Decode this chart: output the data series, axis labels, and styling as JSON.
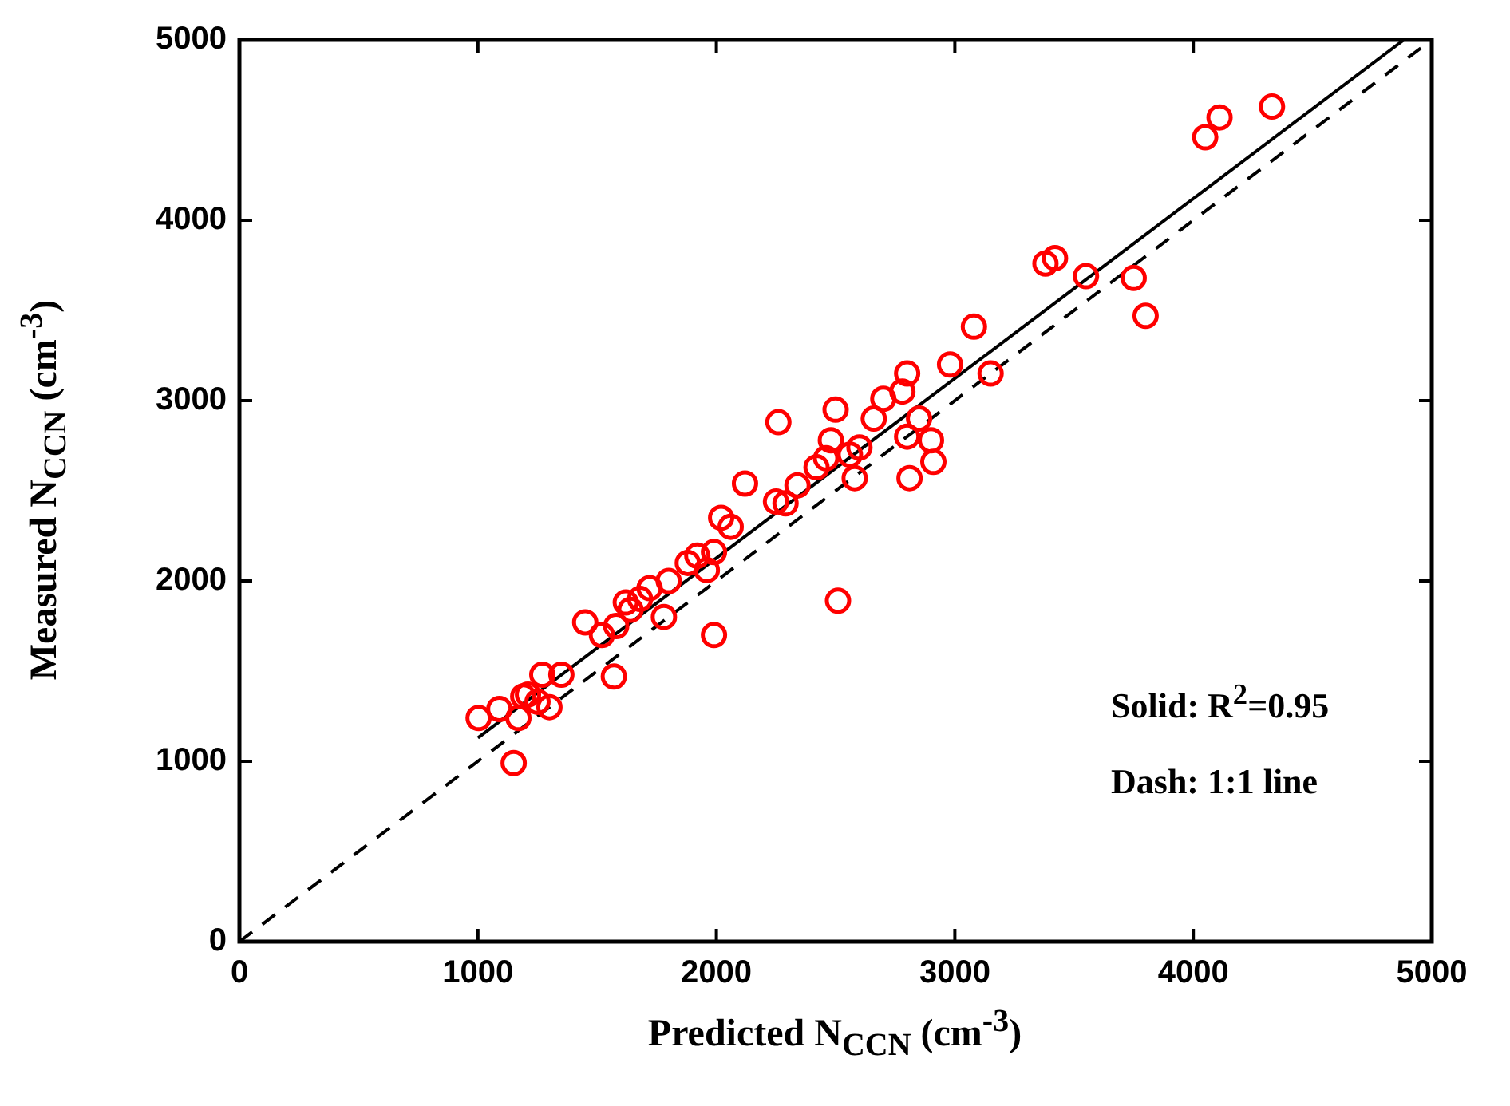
{
  "chart_data": {
    "type": "scatter",
    "xlabel": "Predicted N$_{CCN}$ (cm$^{-3}$)",
    "ylabel": "Measured N$_{CCN}$ (cm$^{-3}$)",
    "xlim": [
      0,
      5000
    ],
    "ylim": [
      0,
      5000
    ],
    "xticks": [
      0,
      1000,
      2000,
      3000,
      4000,
      5000
    ],
    "yticks": [
      0,
      1000,
      2000,
      3000,
      4000,
      5000
    ],
    "grid": false,
    "legend": false,
    "marker": "circle",
    "annotations": [
      "Solid: R$^{2}$=0.95",
      "Dash: 1:1 line"
    ],
    "series": [
      {
        "color": "#ff0000",
        "x": [
          1003,
          1090,
          1150,
          1170,
          1190,
          1210,
          1250,
          1270,
          1300,
          1350,
          1450,
          1520,
          1570,
          1580,
          1620,
          1640,
          1680,
          1720,
          1780,
          1800,
          1880,
          1920,
          1960,
          1990,
          1990,
          2020,
          2060,
          2120,
          2250,
          2260,
          2290,
          2340,
          2420,
          2460,
          2480,
          2500,
          2510,
          2560,
          2580,
          2600,
          2660,
          2700,
          2780,
          2800,
          2800,
          2810,
          2850,
          2900,
          2910,
          2980,
          3080,
          3150,
          3380,
          3420,
          3550,
          3750,
          3800,
          4050,
          4110,
          4330
        ],
        "values": [
          1240,
          1290,
          990,
          1240,
          1360,
          1370,
          1330,
          1480,
          1300,
          1480,
          1770,
          1700,
          1470,
          1750,
          1880,
          1840,
          1900,
          1960,
          1800,
          2000,
          2100,
          2140,
          2060,
          2160,
          1700,
          2350,
          2300,
          2540,
          2440,
          2880,
          2430,
          2530,
          2630,
          2680,
          2780,
          2950,
          1890,
          2700,
          2570,
          2740,
          2900,
          3010,
          3050,
          3150,
          2800,
          2570,
          2900,
          2780,
          2660,
          3200,
          3410,
          3150,
          3760,
          3790,
          3690,
          3680,
          3470,
          4460,
          4570,
          4630
        ]
      },
      {
        "type": "line",
        "color": "#000000",
        "marker": "none",
        "line_style": "solid",
        "x": [
          1000,
          4883
        ],
        "values": [
          1130,
          5000
        ]
      },
      {
        "type": "line",
        "color": "#000000",
        "marker": "none",
        "line_style": "dashed",
        "x": [
          0,
          5000
        ],
        "values": [
          0,
          5000
        ]
      }
    ]
  }
}
